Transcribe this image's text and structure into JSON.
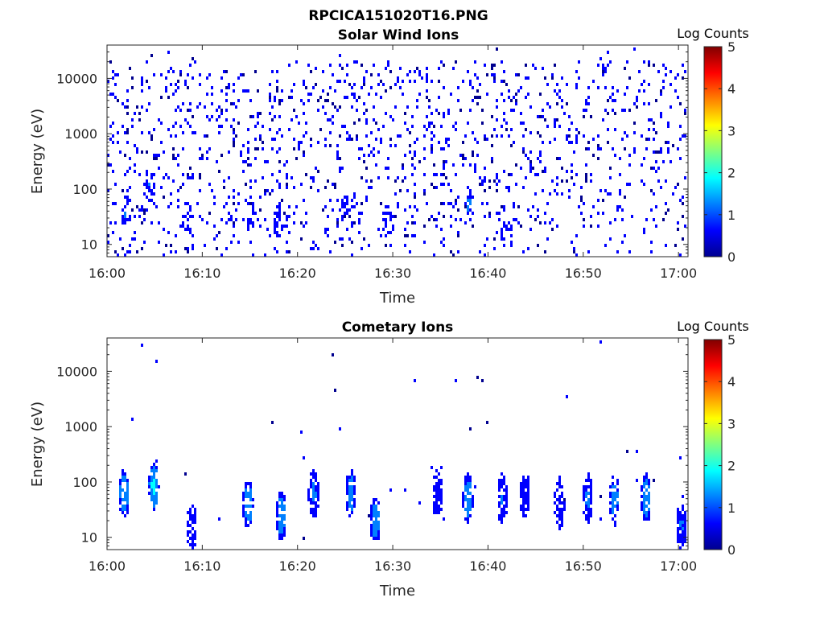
{
  "figure_title": "RPCICA151020T16.PNG",
  "colormap": [
    "#00008f",
    "#0000ff",
    "#0080ff",
    "#00ffff",
    "#80ff80",
    "#ffff00",
    "#ff8000",
    "#ff0000",
    "#800000"
  ],
  "chart_data": [
    {
      "type": "heatmap",
      "title": "Solar Wind Ions",
      "xlabel": "Time",
      "ylabel": "Energy (eV)",
      "x_ticks": [
        "16:00",
        "16:10",
        "16:20",
        "16:30",
        "16:40",
        "16:50",
        "17:00"
      ],
      "xlim_minutes": [
        0,
        61
      ],
      "y_ticks": [
        "10",
        "100",
        "1000",
        "10000"
      ],
      "y_scale": "log",
      "ylim": [
        6,
        40000
      ],
      "colorbar": {
        "label": "Log Counts",
        "ticks": [
          "0",
          "1",
          "2",
          "3",
          "4",
          "5"
        ],
        "range": [
          0,
          5
        ]
      },
      "pattern": "sparse",
      "background_fill_fraction": 0.11,
      "clusters": [
        {
          "t": 2.0,
          "e": 40,
          "count": 0.9
        },
        {
          "t": 4.5,
          "e": 120,
          "count": 0.9
        },
        {
          "t": 8.5,
          "e": 30,
          "count": 0.8
        },
        {
          "t": 15.0,
          "e": 40,
          "count": 0.8
        },
        {
          "t": 18.0,
          "e": 25,
          "count": 0.8
        },
        {
          "t": 25.0,
          "e": 40,
          "count": 0.8
        },
        {
          "t": 29.5,
          "e": 25,
          "count": 0.8
        },
        {
          "t": 38.0,
          "e": 50,
          "count": 0.9
        },
        {
          "t": 42.0,
          "e": 15,
          "count": 0.8
        }
      ],
      "annotations": []
    },
    {
      "type": "heatmap",
      "title": "Cometary Ions",
      "xlabel": "Time",
      "ylabel": "Energy (eV)",
      "x_ticks": [
        "16:00",
        "16:10",
        "16:20",
        "16:30",
        "16:40",
        "16:50",
        "17:00"
      ],
      "xlim_minutes": [
        0,
        61
      ],
      "y_ticks": [
        "10",
        "100",
        "1000",
        "10000"
      ],
      "y_scale": "log",
      "ylim": [
        6,
        40000
      ],
      "colorbar": {
        "label": "Log Counts",
        "ticks": [
          "0",
          "1",
          "2",
          "3",
          "4",
          "5"
        ],
        "range": [
          0,
          5
        ]
      },
      "pattern": "bursts",
      "background_fill_fraction": 0.003,
      "clusters": [
        {
          "t": 1.8,
          "e": 60,
          "count": 1.4
        },
        {
          "t": 4.9,
          "e": 80,
          "count": 1.6
        },
        {
          "t": 8.9,
          "e": 15,
          "count": 0.7
        },
        {
          "t": 14.8,
          "e": 40,
          "count": 1.3
        },
        {
          "t": 18.3,
          "e": 25,
          "count": 1.3
        },
        {
          "t": 21.7,
          "e": 60,
          "count": 1.0
        },
        {
          "t": 25.6,
          "e": 60,
          "count": 1.2
        },
        {
          "t": 28.2,
          "e": 20,
          "count": 1.2
        },
        {
          "t": 34.7,
          "e": 60,
          "count": 0.8
        },
        {
          "t": 37.9,
          "e": 50,
          "count": 1.3
        },
        {
          "t": 41.5,
          "e": 50,
          "count": 0.9
        },
        {
          "t": 43.9,
          "e": 60,
          "count": 0.8
        },
        {
          "t": 47.5,
          "e": 40,
          "count": 0.7
        },
        {
          "t": 50.5,
          "e": 50,
          "count": 1.0
        },
        {
          "t": 53.3,
          "e": 50,
          "count": 1.1
        },
        {
          "t": 56.6,
          "e": 50,
          "count": 1.3
        },
        {
          "t": 60.3,
          "e": 15,
          "count": 0.9
        }
      ],
      "annotations": []
    }
  ]
}
